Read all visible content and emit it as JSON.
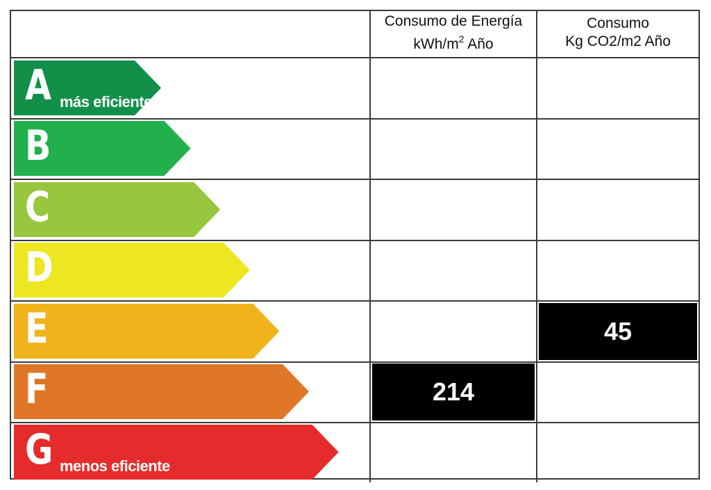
{
  "header": {
    "energy_line1": "Consumo de Energía",
    "energy_line2_base": "kWh/m",
    "energy_line2_sup": "2",
    "energy_line2_tail": " Año",
    "emissions_line1": "Consumo",
    "emissions_line2": "Kg CO2/m2 Año"
  },
  "bands": [
    {
      "letter": "A",
      "note": "más eficiente",
      "color": "#12904a",
      "length": 1
    },
    {
      "letter": "B",
      "note": "",
      "color": "#21b04b",
      "length": 2
    },
    {
      "letter": "C",
      "note": "",
      "color": "#97c73e",
      "length": 3
    },
    {
      "letter": "D",
      "note": "",
      "color": "#ede622",
      "length": 4
    },
    {
      "letter": "E",
      "note": "",
      "color": "#f0b31b",
      "length": 5
    },
    {
      "letter": "F",
      "note": "",
      "color": "#e07728",
      "length": 6
    },
    {
      "letter": "G",
      "note": "menos eficiente",
      "color": "#e52b2b",
      "length": 7
    }
  ],
  "ratings": {
    "energy": {
      "band": "F",
      "value": "214"
    },
    "emissions": {
      "band": "E",
      "value": "45"
    }
  }
}
